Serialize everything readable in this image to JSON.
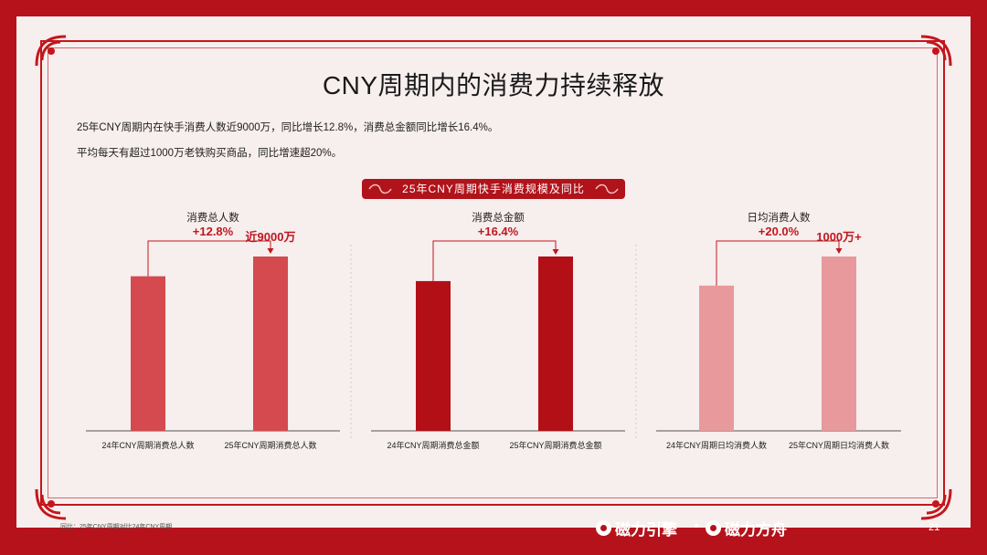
{
  "title": "CNY周期内的消费力持续释放",
  "desc_line1": "25年CNY周期内在快手消费人数近9000万，同比增长12.8%，消费总金额同比增长16.4%。",
  "desc_line2": "平均每天有超过1000万老铁购买商品，同比增速超20%。",
  "banner_label": "25年CNY周期快手消费规模及同比",
  "footnote": "同比：25年CNY周期对比24年CNY周期",
  "page_number": "21",
  "brand_left": "磁力引擎",
  "brand_right": "磁力方舟",
  "colors": {
    "panel1": "#d44a4e",
    "panel2": "#b30f17",
    "panel3": "#e8999b",
    "accent": "#c0171e"
  },
  "chart_data": [
    {
      "type": "bar",
      "title": "消费总人数",
      "growth": "+12.8%",
      "categories": [
        "24年CNY周期消费总人数",
        "25年CNY周期消费总人数"
      ],
      "values": [
        79.8,
        90
      ],
      "value_label": "近9000万",
      "value_label_index": 1
    },
    {
      "type": "bar",
      "title": "消费总金额",
      "growth": "+16.4%",
      "categories": [
        "24年CNY周期消费总金额",
        "25年CNY周期消费总金额"
      ],
      "values": [
        85.9,
        100
      ]
    },
    {
      "type": "bar",
      "title": "日均消费人数",
      "growth": "+20.0%",
      "categories": [
        "24年CNY周期日均消费人数",
        "25年CNY周期日均消费人数"
      ],
      "values": [
        83.3,
        100
      ],
      "value_label": "1000万+",
      "value_label_index": 1
    }
  ]
}
